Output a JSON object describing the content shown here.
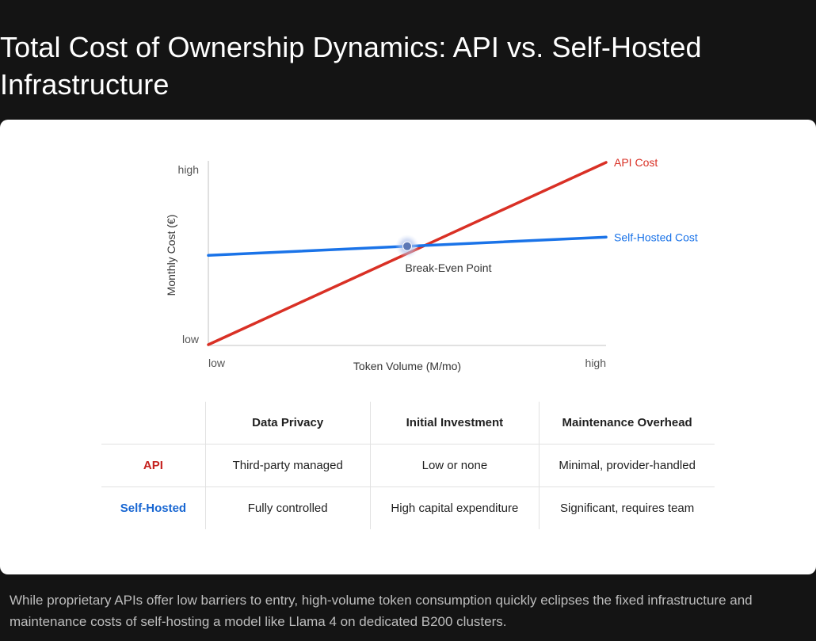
{
  "page": {
    "title": "Total Cost of Ownership Dynamics: API vs. Self-Hosted Infrastructure",
    "caption": "While proprietary APIs offer low barriers to entry, high-volume token consumption quickly eclipses the fixed infrastructure and maintenance costs of self-hosting a model like Llama 4 on dedicated B200 clusters."
  },
  "chart_data": {
    "type": "line",
    "title": "",
    "xlabel": "Token Volume (M/mo)",
    "ylabel": "Monthly Cost (€)",
    "x_tick_labels": [
      "low",
      "high"
    ],
    "y_tick_labels": [
      "low",
      "high"
    ],
    "xlim": [
      0,
      1
    ],
    "ylim": [
      0,
      1
    ],
    "grid": false,
    "legend": "direct labels at line ends",
    "series": [
      {
        "name": "API Cost",
        "color": "#d93025",
        "x": [
          0,
          1
        ],
        "y": [
          0,
          1
        ]
      },
      {
        "name": "Self-Hosted Cost",
        "color": "#1a73e8",
        "x": [
          0,
          1
        ],
        "y": [
          0.49,
          0.59
        ]
      }
    ],
    "annotations": [
      {
        "text": "Break-Even Point",
        "x": 0.5,
        "y": 0.54,
        "marker_color": "#5b77b5"
      }
    ]
  },
  "table": {
    "headers": [
      "",
      "Data Privacy",
      "Initial Investment",
      "Maintenance Overhead"
    ],
    "rows": [
      {
        "label": "API",
        "color": "#c5221f",
        "cells": [
          "Third-party managed",
          "Low or none",
          "Minimal, provider-handled"
        ]
      },
      {
        "label": "Self-Hosted",
        "color": "#1967d2",
        "cells": [
          "Fully controlled",
          "High capital expenditure",
          "Significant, requires team"
        ]
      }
    ]
  }
}
